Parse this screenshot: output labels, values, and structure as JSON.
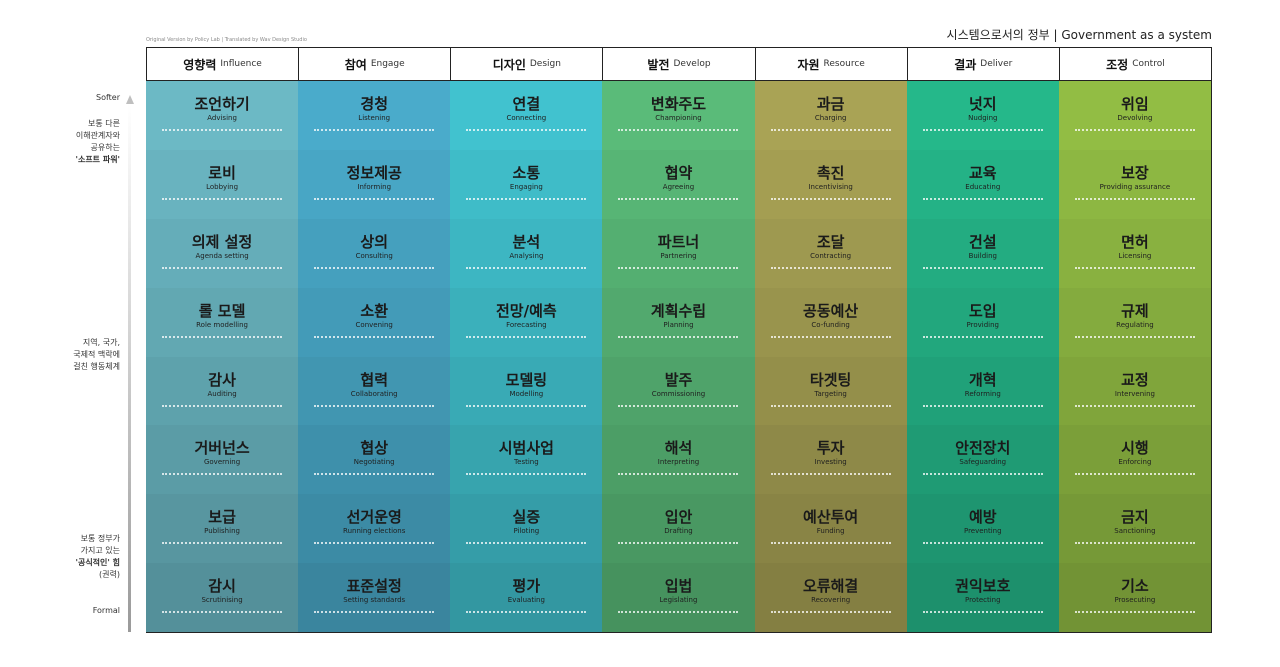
{
  "credit": "Original Version by Policy Lab | Translated by Wav Design Studio",
  "page_title": "시스템으로서의 정부 | Government as a system",
  "axis": {
    "top": "Softer",
    "bottom": "Formal",
    "soft_power": [
      "보통 다른",
      "이해관계자와",
      "공유하는",
      "'소프트 파워'"
    ],
    "middle": [
      "지역, 국가,",
      "국제적 맥락에",
      "걸친 행동체계"
    ],
    "formal_power": [
      "보통 정부가",
      "가지고 있는",
      "'공식적인' 힘",
      "(권력)"
    ]
  },
  "columns": [
    {
      "ko": "영향력",
      "en": "Influence",
      "color": "#6cb9c5",
      "rows": [
        {
          "ko": "조언하기",
          "en": "Advising"
        },
        {
          "ko": "로비",
          "en": "Lobbying"
        },
        {
          "ko": "의제 설정",
          "en": "Agenda setting"
        },
        {
          "ko": "롤 모델",
          "en": "Role modelling"
        },
        {
          "ko": "감사",
          "en": "Auditing"
        },
        {
          "ko": "거버넌스",
          "en": "Governing"
        },
        {
          "ko": "보급",
          "en": "Publishing"
        },
        {
          "ko": "감시",
          "en": "Scrutinising"
        }
      ]
    },
    {
      "ko": "참여",
      "en": "Engage",
      "color": "#4aabcb",
      "rows": [
        {
          "ko": "경청",
          "en": "Listening"
        },
        {
          "ko": "정보제공",
          "en": "Informing"
        },
        {
          "ko": "상의",
          "en": "Consulting"
        },
        {
          "ko": "소환",
          "en": "Convening"
        },
        {
          "ko": "협력",
          "en": "Collaborating"
        },
        {
          "ko": "협상",
          "en": "Negotiating"
        },
        {
          "ko": "선거운영",
          "en": "Running elections"
        },
        {
          "ko": "표준설정",
          "en": "Setting standards"
        }
      ]
    },
    {
      "ko": "디자인",
      "en": "Design",
      "color": "#41c2cf",
      "rows": [
        {
          "ko": "연결",
          "en": "Connecting"
        },
        {
          "ko": "소통",
          "en": "Engaging"
        },
        {
          "ko": "분석",
          "en": "Analysing"
        },
        {
          "ko": "전망/예측",
          "en": "Forecasting"
        },
        {
          "ko": "모델링",
          "en": "Modelling"
        },
        {
          "ko": "시범사업",
          "en": "Testing"
        },
        {
          "ko": "실증",
          "en": "Piloting"
        },
        {
          "ko": "평가",
          "en": "Evaluating"
        }
      ]
    },
    {
      "ko": "발전",
      "en": "Develop",
      "color": "#5abb79",
      "rows": [
        {
          "ko": "변화주도",
          "en": "Championing"
        },
        {
          "ko": "협약",
          "en": "Agreeing"
        },
        {
          "ko": "파트너",
          "en": "Partnering"
        },
        {
          "ko": "계획수립",
          "en": "Planning"
        },
        {
          "ko": "발주",
          "en": "Commissioning"
        },
        {
          "ko": "해석",
          "en": "Interpreting"
        },
        {
          "ko": "입안",
          "en": "Drafting"
        },
        {
          "ko": "입법",
          "en": "Legislating"
        }
      ]
    },
    {
      "ko": "자원",
      "en": "Resource",
      "color": "#a9a355",
      "rows": [
        {
          "ko": "과금",
          "en": "Charging"
        },
        {
          "ko": "촉진",
          "en": "Incentivising"
        },
        {
          "ko": "조달",
          "en": "Contracting"
        },
        {
          "ko": "공동예산",
          "en": "Co-funding"
        },
        {
          "ko": "타겟팅",
          "en": "Targeting"
        },
        {
          "ko": "투자",
          "en": "Investing"
        },
        {
          "ko": "예산투여",
          "en": "Funding"
        },
        {
          "ko": "오류해결",
          "en": "Recovering"
        }
      ]
    },
    {
      "ko": "결과",
      "en": "Deliver",
      "color": "#25b88a",
      "rows": [
        {
          "ko": "넛지",
          "en": "Nudging"
        },
        {
          "ko": "교육",
          "en": "Educating"
        },
        {
          "ko": "건설",
          "en": "Building"
        },
        {
          "ko": "도입",
          "en": "Providing"
        },
        {
          "ko": "개혁",
          "en": "Reforming"
        },
        {
          "ko": "안전장치",
          "en": "Safeguarding"
        },
        {
          "ko": "예방",
          "en": "Preventing"
        },
        {
          "ko": "권익보호",
          "en": "Protecting"
        }
      ]
    },
    {
      "ko": "조정",
      "en": "Control",
      "color": "#92bd44",
      "rows": [
        {
          "ko": "위임",
          "en": "Devolving"
        },
        {
          "ko": "보장",
          "en": "Providing assurance"
        },
        {
          "ko": "면허",
          "en": "Licensing"
        },
        {
          "ko": "규제",
          "en": "Regulating"
        },
        {
          "ko": "교정",
          "en": "Intervening"
        },
        {
          "ko": "시행",
          "en": "Enforcing"
        },
        {
          "ko": "금지",
          "en": "Sanctioning"
        },
        {
          "ko": "기소",
          "en": "Prosecuting"
        }
      ]
    }
  ]
}
